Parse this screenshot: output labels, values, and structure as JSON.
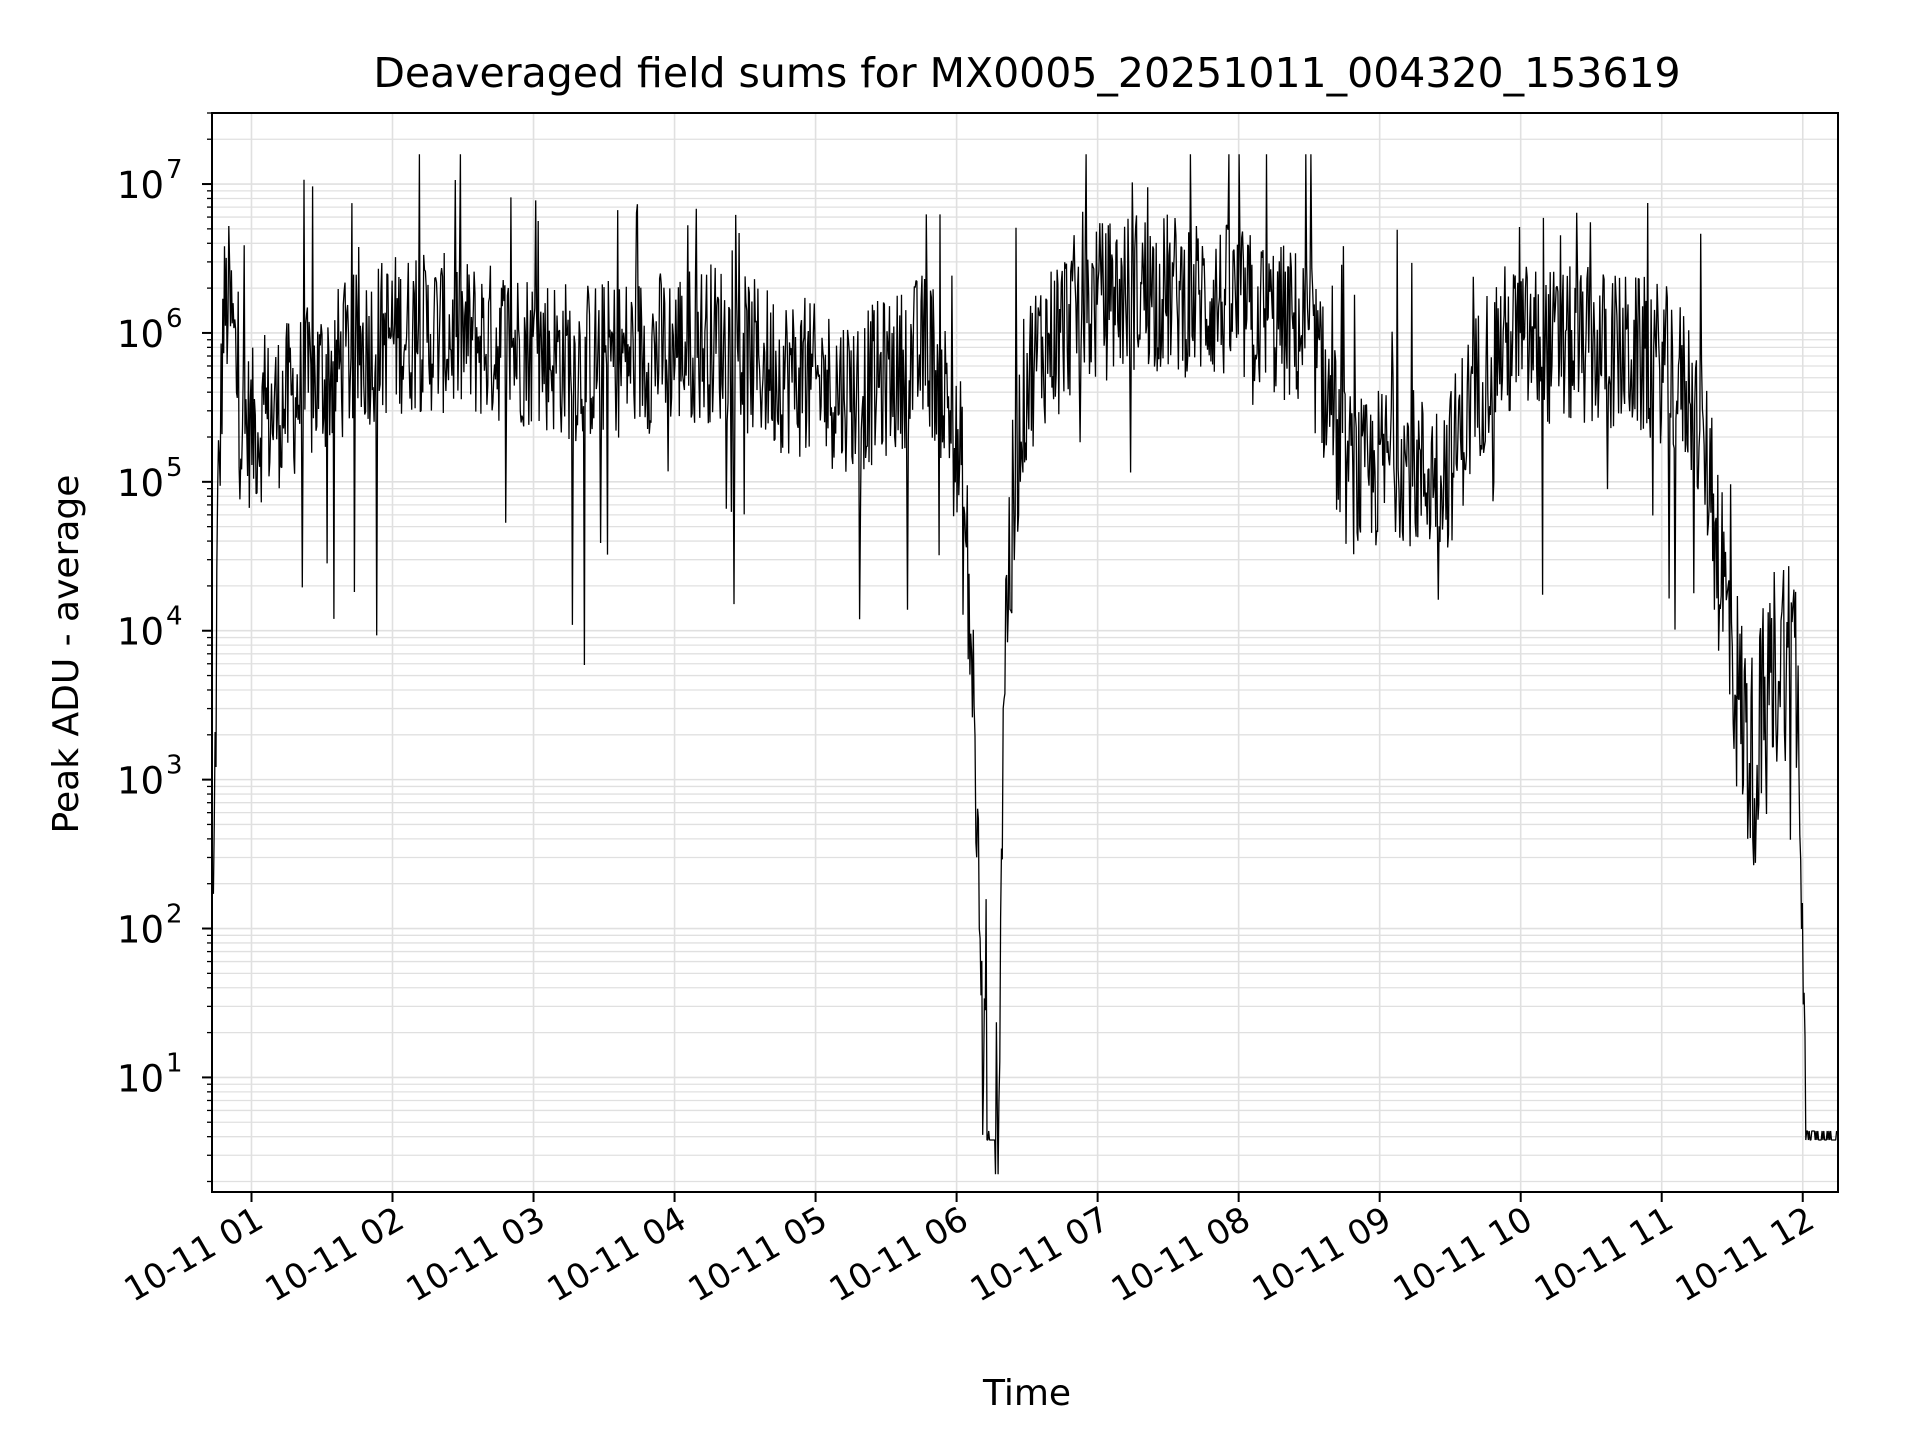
{
  "chart_data": {
    "type": "line",
    "title": "Deaveraged field sums for MX0005_20251011_004320_153619",
    "xlabel": "Time",
    "ylabel": "Peak ADU - average",
    "yscale": "log",
    "xlim_hours": [
      0.72,
      12.25
    ],
    "ylim": [
      1.7,
      30000000
    ],
    "grid": true,
    "line_color": "#000000",
    "grid_color": "#e0e0e0",
    "x_ticks": [
      {
        "hour": 1,
        "label": "10-11 01"
      },
      {
        "hour": 2,
        "label": "10-11 02"
      },
      {
        "hour": 3,
        "label": "10-11 03"
      },
      {
        "hour": 4,
        "label": "10-11 04"
      },
      {
        "hour": 5,
        "label": "10-11 05"
      },
      {
        "hour": 6,
        "label": "10-11 06"
      },
      {
        "hour": 7,
        "label": "10-11 07"
      },
      {
        "hour": 8,
        "label": "10-11 08"
      },
      {
        "hour": 9,
        "label": "10-11 09"
      },
      {
        "hour": 10,
        "label": "10-11 10"
      },
      {
        "hour": 11,
        "label": "10-11 11"
      },
      {
        "hour": 12,
        "label": "10-11 12"
      }
    ],
    "y_ticks": [
      {
        "exp": 1,
        "base": "10",
        "sup": "1"
      },
      {
        "exp": 2,
        "base": "10",
        "sup": "2"
      },
      {
        "exp": 3,
        "base": "10",
        "sup": "3"
      },
      {
        "exp": 4,
        "base": "10",
        "sup": "4"
      },
      {
        "exp": 5,
        "base": "10",
        "sup": "5"
      },
      {
        "exp": 6,
        "base": "10",
        "sup": "6"
      },
      {
        "exp": 7,
        "base": "10",
        "sup": "7"
      }
    ],
    "series": [
      {
        "name": "Peak ADU - average",
        "envelope_hours": [
          0.73,
          0.76,
          0.8,
          0.84,
          0.88,
          0.92,
          1.0,
          1.2,
          1.5,
          1.8,
          2.0,
          2.3,
          2.6,
          3.0,
          3.3,
          3.7,
          4.0,
          4.3,
          4.6,
          5.0,
          5.3,
          5.6,
          5.8,
          5.95,
          6.05,
          6.12,
          6.18,
          6.22,
          6.26,
          6.3,
          6.33,
          6.36,
          6.4,
          6.45,
          6.5,
          6.6,
          6.8,
          7.0,
          7.3,
          7.6,
          7.9,
          8.2,
          8.5,
          8.65,
          8.75,
          8.9,
          9.1,
          9.3,
          9.5,
          9.6,
          9.8,
          10.0,
          10.2,
          10.5,
          10.8,
          11.0,
          11.2,
          11.35,
          11.45,
          11.55,
          11.65,
          11.75,
          11.85,
          11.95,
          12.0,
          12.02,
          12.1,
          12.25
        ],
        "envelope_log10": [
          2.0,
          4.6,
          6.1,
          6.2,
          5.9,
          5.4,
          5.35,
          5.5,
          5.7,
          5.9,
          6.0,
          6.0,
          5.95,
          5.9,
          5.8,
          5.85,
          5.9,
          5.95,
          5.8,
          5.65,
          5.6,
          5.75,
          5.9,
          5.5,
          4.8,
          3.6,
          1.3,
          0.58,
          0.58,
          1.0,
          3.5,
          4.3,
          4.7,
          5.4,
          5.7,
          5.9,
          6.1,
          6.2,
          6.3,
          6.25,
          6.2,
          6.1,
          6.0,
          5.5,
          5.1,
          5.0,
          5.2,
          5.05,
          5.1,
          5.4,
          5.9,
          5.95,
          5.9,
          5.9,
          5.85,
          5.8,
          5.6,
          5.0,
          4.2,
          3.5,
          3.1,
          3.6,
          3.9,
          3.8,
          2.5,
          0.58,
          0.58,
          0.58
        ]
      }
    ]
  }
}
